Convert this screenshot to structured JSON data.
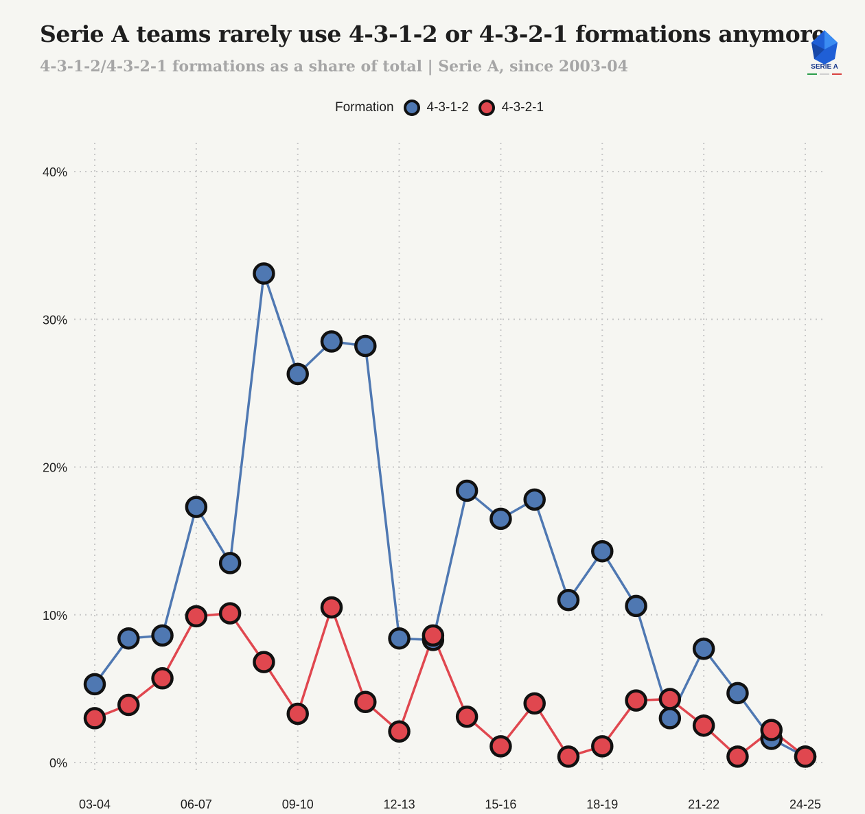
{
  "header": {
    "title": "Serie A teams rarely use 4-3-1-2 or 4-3-2-1 formations anymore",
    "subtitle": "4-3-1-2/4-3-2-1 formations as a share of total | Serie A, since 2003-04",
    "logo_text": "SERIE A"
  },
  "legend": {
    "title": "Formation"
  },
  "colors": {
    "background": "#f6f6f2",
    "series_431_2": "#4f78b2",
    "series_432_1": "#e0474f",
    "marker_outline": "#111111",
    "grid": "#c8c8c8"
  },
  "chart_data": {
    "type": "line",
    "xlabel": "",
    "ylabel": "",
    "x": [
      "03-04",
      "04-05",
      "05-06",
      "06-07",
      "07-08",
      "08-09",
      "09-10",
      "10-11",
      "11-12",
      "12-13",
      "13-14",
      "14-15",
      "15-16",
      "16-17",
      "17-18",
      "18-19",
      "19-20",
      "20-21",
      "21-22",
      "22-23",
      "23-24",
      "24-25"
    ],
    "x_tick_labels": [
      "03-04",
      "06-07",
      "09-10",
      "12-13",
      "15-16",
      "18-19",
      "21-22",
      "24-25"
    ],
    "ylim": [
      0,
      40
    ],
    "y_ticks": [
      0,
      10,
      20,
      30,
      40
    ],
    "y_tick_labels": [
      "0%",
      "10%",
      "20%",
      "30%",
      "40%"
    ],
    "grid": true,
    "legend_position": "top-center",
    "series": [
      {
        "name": "4-3-1-2",
        "color": "#4f78b2",
        "values": [
          5.3,
          8.4,
          8.6,
          17.3,
          13.5,
          33.1,
          26.3,
          28.5,
          28.2,
          8.4,
          8.3,
          18.4,
          16.5,
          17.8,
          11.0,
          14.3,
          10.6,
          3.0,
          7.7,
          4.7,
          1.6,
          0.4
        ]
      },
      {
        "name": "4-3-2-1",
        "color": "#e0474f",
        "values": [
          3.0,
          3.9,
          5.7,
          9.9,
          10.1,
          6.8,
          3.3,
          10.5,
          4.1,
          2.1,
          8.6,
          3.1,
          1.1,
          4.0,
          0.4,
          1.1,
          4.2,
          4.3,
          2.5,
          0.4,
          2.2,
          0.4
        ]
      }
    ]
  }
}
